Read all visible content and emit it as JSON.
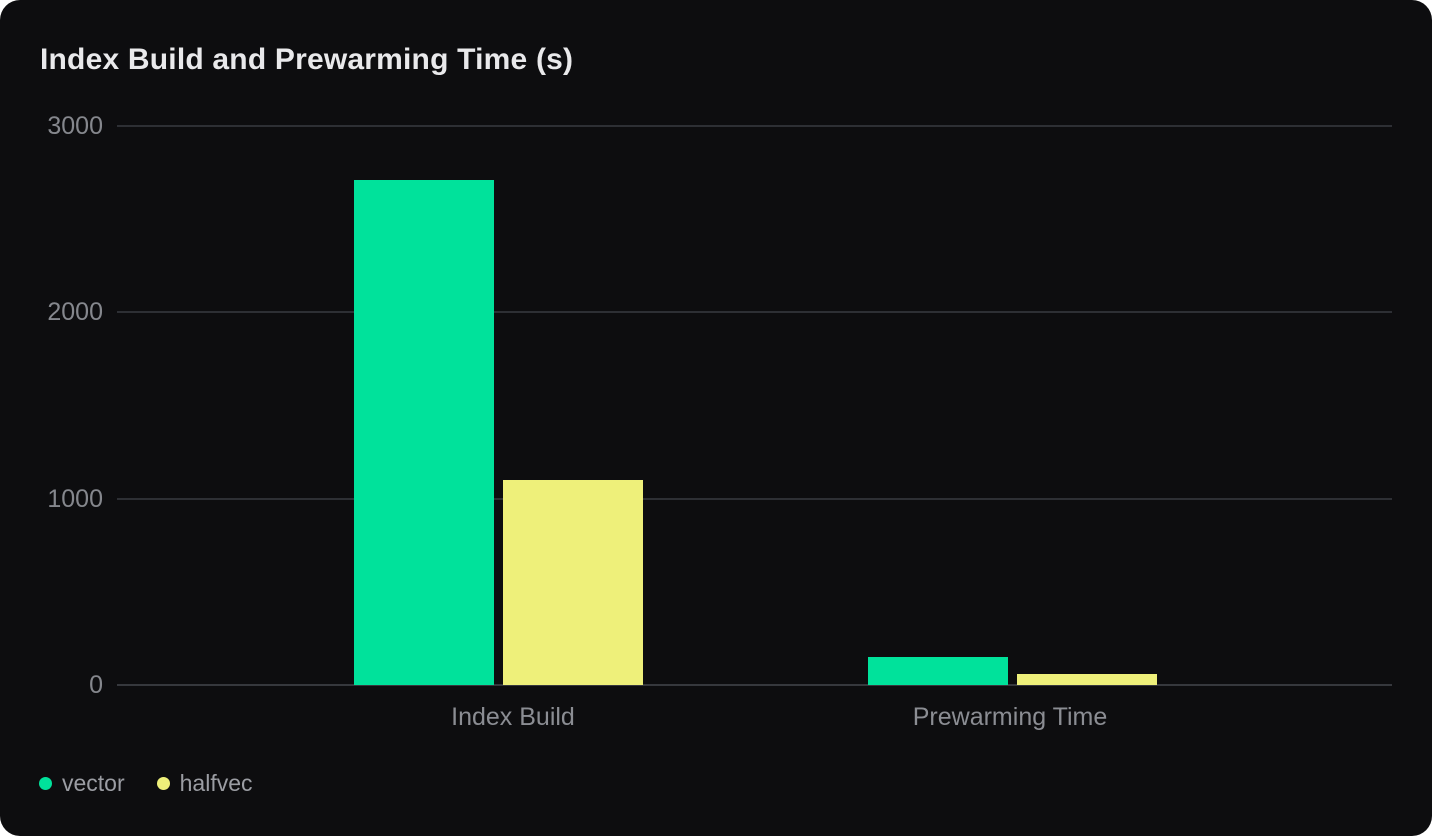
{
  "chart_data": {
    "type": "bar",
    "title": "Index Build and Prewarming Time (s)",
    "categories": [
      "Index Build",
      "Prewarming Time"
    ],
    "series": [
      {
        "name": "vector",
        "color": "#00E29B",
        "values": [
          2710,
          150
        ]
      },
      {
        "name": "halfvec",
        "color": "#EEF07A",
        "values": [
          1100,
          60
        ]
      }
    ],
    "ylabel": "",
    "xlabel": "",
    "ylim": [
      0,
      3000
    ],
    "yticks": [
      0,
      1000,
      2000,
      3000
    ],
    "grid": true,
    "legend_position": "bottom-left"
  },
  "colors": {
    "card_background": "#0D0D0F",
    "page_background": "#FFFFFF",
    "gridline": "#2D2F34",
    "title_text": "#E9E9EB",
    "axis_text": "#85878D",
    "legend_text": "#9B9DA3"
  }
}
